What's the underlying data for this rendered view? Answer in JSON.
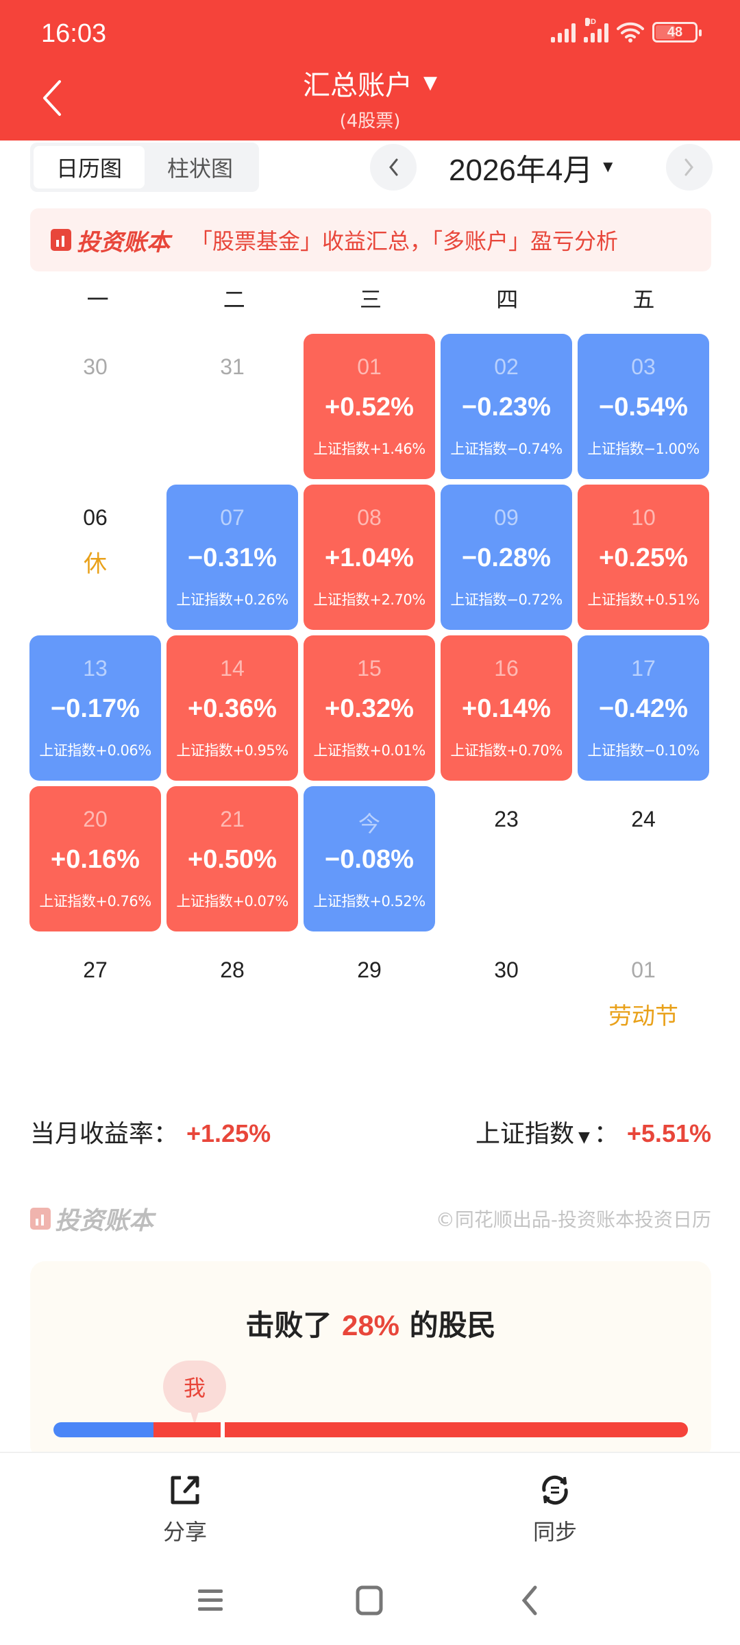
{
  "status_bar": {
    "time": "16:03",
    "network_label": "HD",
    "battery": "48"
  },
  "header": {
    "title": "汇总账户",
    "subtitle": "(4股票)",
    "back_icon": "chevron-left-icon",
    "dropdown_icon": "caret-down-icon"
  },
  "view_tabs": [
    {
      "label": "日历图",
      "active": true
    },
    {
      "label": "柱状图",
      "active": false
    }
  ],
  "month_nav": {
    "label": "2026年4月",
    "prev_icon": "chevron-left-icon",
    "next_icon": "chevron-right-icon"
  },
  "banner": {
    "logo_text": "投资账本",
    "text": "「股票基金」收益汇总，「多账户」盈亏分析"
  },
  "weekdays": [
    "一",
    "二",
    "三",
    "四",
    "五"
  ],
  "calendar": [
    {
      "day": "30",
      "type": "muted",
      "pct": "",
      "index": "",
      "note": ""
    },
    {
      "day": "31",
      "type": "muted",
      "pct": "",
      "index": "",
      "note": ""
    },
    {
      "day": "01",
      "type": "up",
      "pct": "+0.52%",
      "index": "上证指数+1.46%",
      "note": ""
    },
    {
      "day": "02",
      "type": "down",
      "pct": "−0.23%",
      "index": "上证指数−0.74%",
      "note": ""
    },
    {
      "day": "03",
      "type": "down",
      "pct": "−0.54%",
      "index": "上证指数−1.00%",
      "note": ""
    },
    {
      "day": "06",
      "type": "plain",
      "pct": "",
      "index": "",
      "note": "休"
    },
    {
      "day": "07",
      "type": "down",
      "pct": "−0.31%",
      "index": "上证指数+0.26%",
      "note": ""
    },
    {
      "day": "08",
      "type": "up",
      "pct": "+1.04%",
      "index": "上证指数+2.70%",
      "note": ""
    },
    {
      "day": "09",
      "type": "down",
      "pct": "−0.28%",
      "index": "上证指数−0.72%",
      "note": ""
    },
    {
      "day": "10",
      "type": "up",
      "pct": "+0.25%",
      "index": "上证指数+0.51%",
      "note": ""
    },
    {
      "day": "13",
      "type": "down",
      "pct": "−0.17%",
      "index": "上证指数+0.06%",
      "note": ""
    },
    {
      "day": "14",
      "type": "up",
      "pct": "+0.36%",
      "index": "上证指数+0.95%",
      "note": ""
    },
    {
      "day": "15",
      "type": "up",
      "pct": "+0.32%",
      "index": "上证指数+0.01%",
      "note": ""
    },
    {
      "day": "16",
      "type": "up",
      "pct": "+0.14%",
      "index": "上证指数+0.70%",
      "note": ""
    },
    {
      "day": "17",
      "type": "down",
      "pct": "−0.42%",
      "index": "上证指数−0.10%",
      "note": ""
    },
    {
      "day": "20",
      "type": "up",
      "pct": "+0.16%",
      "index": "上证指数+0.76%",
      "note": ""
    },
    {
      "day": "21",
      "type": "up",
      "pct": "+0.50%",
      "index": "上证指数+0.07%",
      "note": ""
    },
    {
      "day": "今",
      "type": "down",
      "pct": "−0.08%",
      "index": "上证指数+0.52%",
      "note": ""
    },
    {
      "day": "23",
      "type": "plain",
      "pct": "",
      "index": "",
      "note": ""
    },
    {
      "day": "24",
      "type": "plain",
      "pct": "",
      "index": "",
      "note": ""
    },
    {
      "day": "27",
      "type": "plain",
      "pct": "",
      "index": "",
      "note": ""
    },
    {
      "day": "28",
      "type": "plain",
      "pct": "",
      "index": "",
      "note": ""
    },
    {
      "day": "29",
      "type": "plain",
      "pct": "",
      "index": "",
      "note": ""
    },
    {
      "day": "30",
      "type": "plain",
      "pct": "",
      "index": "",
      "note": ""
    },
    {
      "day": "01",
      "type": "muted",
      "pct": "",
      "index": "",
      "note": "劳动节"
    }
  ],
  "summary": {
    "monthly_label": "当月收益率：",
    "monthly_value": "+1.25%",
    "index_label": "上证指数",
    "index_colon": "：",
    "index_value": "+5.51%"
  },
  "footer": {
    "logo_text": "投资账本",
    "credit": "©同花顺出品-投资账本投资日历"
  },
  "rank_card": {
    "prefix": "击败了",
    "percent": "28%",
    "suffix": "的股民",
    "marker_label": "我",
    "bar_percent": 28
  },
  "bottom_bar": [
    {
      "label": "分享",
      "icon": "share-icon"
    },
    {
      "label": "同步",
      "icon": "sync-icon"
    }
  ],
  "colors": {
    "brand_red": "#F5433A",
    "up": "#FD6558",
    "down": "#6499FA",
    "holiday": "#E9A11A"
  }
}
